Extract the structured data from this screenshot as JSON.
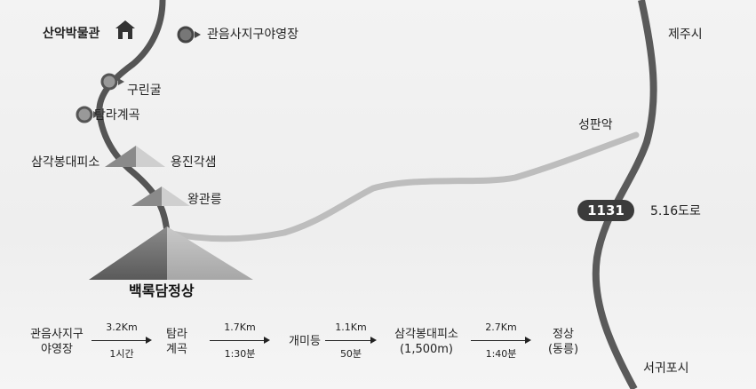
{
  "labels": {
    "museum": "산악박물관",
    "campground": "관음사지구야영장",
    "gurinul": "구린굴",
    "tamna_valley": "탐라계곡",
    "samgak_shelter": "삼각봉대피소",
    "yongjin_gaksaem": "용진각샘",
    "wanggwan_reung": "왕관릉",
    "summit": "백록담정상",
    "jeju_si": "제주시",
    "seongpanak": "성판악",
    "road_number": "1131",
    "road_name": "5.16도로",
    "seogwipo_si": "서귀포시"
  },
  "course": {
    "stops": [
      {
        "line1": "관음사지구",
        "line2": "야영장"
      },
      {
        "line1": "탐라",
        "line2": "계곡"
      },
      {
        "line1": "개미등",
        "line2": ""
      },
      {
        "line1": "삼각봉대피소",
        "line2": "(1,500m)"
      },
      {
        "line1": "정상",
        "line2": "(동릉)"
      }
    ],
    "segments": [
      {
        "distance": "3.2Km",
        "time": "1시간"
      },
      {
        "distance": "1.7Km",
        "time": "1:30분"
      },
      {
        "distance": "1.1Km",
        "time": "50분"
      },
      {
        "distance": "2.7Km",
        "time": "1:40분"
      }
    ]
  },
  "colors": {
    "trail": "#555555",
    "seongpanak_trail": "#bdbdbd",
    "road_516": "#5a5a5a",
    "mountain": "#6f6f6f"
  }
}
